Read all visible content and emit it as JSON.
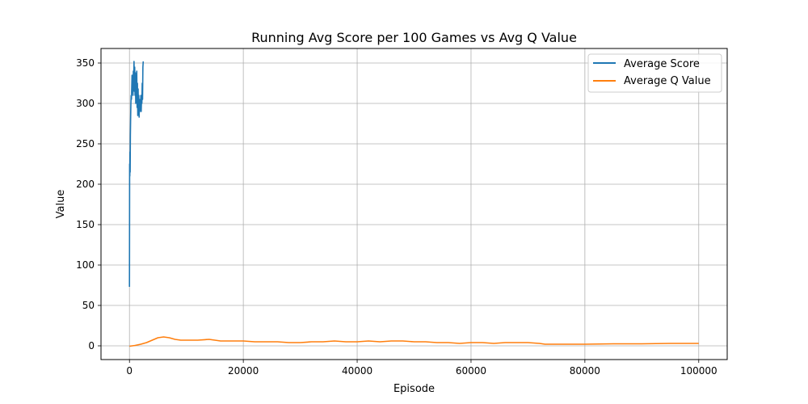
{
  "chart_data": {
    "type": "line",
    "title": "Running Avg Score per 100 Games vs Avg Q Value",
    "xlabel": "Episode",
    "ylabel": "Value",
    "xlim": [
      -5000,
      105000
    ],
    "ylim": [
      -17,
      368
    ],
    "xticks": [
      0,
      20000,
      40000,
      60000,
      80000,
      100000
    ],
    "yticks": [
      0,
      50,
      100,
      150,
      200,
      250,
      300,
      350
    ],
    "grid": true,
    "legend": "top-right",
    "series": [
      {
        "name": "Average Score",
        "color": "#1f77b4",
        "x": [
          0,
          30,
          60,
          90,
          120,
          160,
          200,
          250,
          300,
          350,
          400,
          450,
          500,
          560,
          620,
          680,
          740,
          800,
          860,
          920,
          980,
          1040,
          1100,
          1160,
          1220,
          1280,
          1340,
          1400,
          1460,
          1520,
          1580,
          1640,
          1700,
          1760,
          1820,
          1880,
          1940,
          2000,
          2060,
          2120,
          2180,
          2240,
          2300,
          2360,
          2420
        ],
        "y": [
          73,
          225,
          210,
          240,
          215,
          260,
          280,
          300,
          310,
          305,
          320,
          335,
          315,
          330,
          310,
          340,
          325,
          352,
          315,
          345,
          310,
          338,
          300,
          330,
          305,
          340,
          295,
          325,
          285,
          318,
          290,
          310,
          283,
          305,
          290,
          300,
          295,
          310,
          290,
          305,
          300,
          325,
          305,
          345,
          352
        ]
      },
      {
        "name": "Average Q Value",
        "color": "#ff7f0e",
        "x": [
          0,
          1000,
          2000,
          3000,
          4000,
          5000,
          6000,
          7000,
          8000,
          9000,
          10000,
          12000,
          14000,
          16000,
          18000,
          20000,
          22000,
          24000,
          26000,
          28000,
          30000,
          32000,
          34000,
          36000,
          38000,
          40000,
          42000,
          44000,
          46000,
          48000,
          50000,
          52000,
          54000,
          56000,
          58000,
          60000,
          62000,
          64000,
          66000,
          68000,
          70000,
          72000,
          73000,
          76000,
          80000,
          85000,
          90000,
          95000,
          100000
        ],
        "y": [
          -0.5,
          0.5,
          2,
          4,
          7,
          10,
          11,
          10,
          8,
          7,
          7,
          7,
          8,
          6,
          6,
          6,
          5,
          5,
          5,
          4,
          4,
          5,
          5,
          6,
          5,
          5,
          6,
          5,
          6,
          6,
          5,
          5,
          4,
          4,
          3,
          4,
          4,
          3,
          4,
          4,
          4,
          3,
          2,
          2,
          2,
          2.5,
          2.5,
          3,
          3
        ]
      }
    ]
  }
}
